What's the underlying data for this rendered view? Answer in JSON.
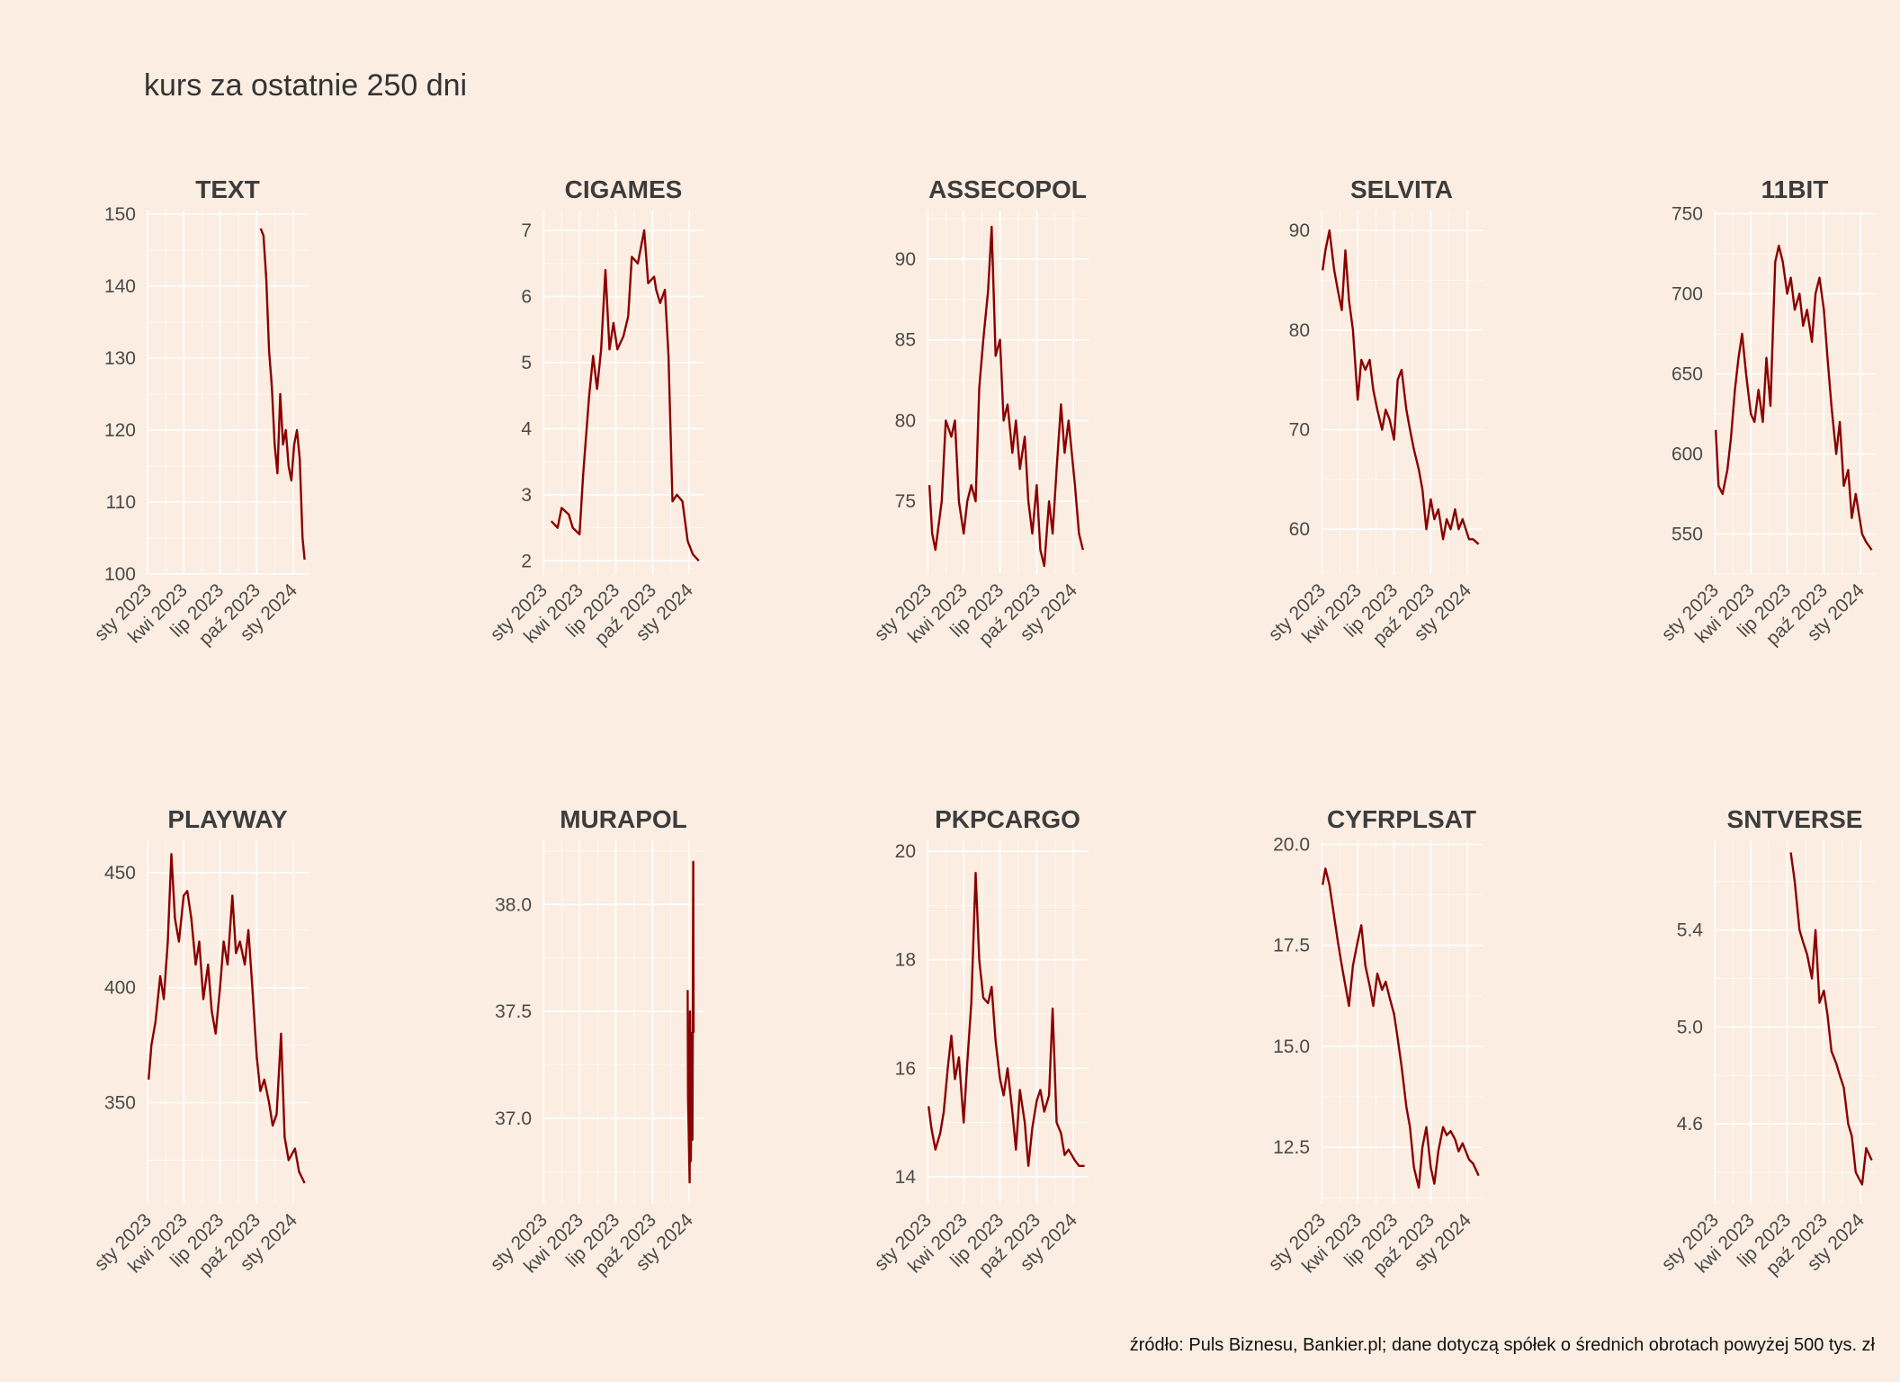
{
  "title": "kurs za ostatnie 250 dni",
  "caption": "źródło: Puls Biznesu, Bankier.pl; dane dotyczą spółek o średnich obrotach powyżej 500 tys. zł",
  "colors": {
    "background": "#FBEDE1",
    "line": "#8B0000",
    "grid": "#FFFFFF"
  },
  "chart_data": [
    {
      "type": "line",
      "title": "TEXT",
      "x_ticks": [
        "sty 2023",
        "kwi 2023",
        "lip 2023",
        "paź 2023",
        "sty 2024"
      ],
      "y_ticks": [
        "100",
        "110",
        "120",
        "130",
        "140",
        "150"
      ],
      "ylim": [
        100,
        150.5
      ],
      "xlim": [
        "2022-12-29",
        "2024-02-08"
      ],
      "series": [
        {
          "x": [
            "2023-10-11",
            "2023-10-18",
            "2023-10-25",
            "2023-11-01",
            "2023-11-08",
            "2023-11-15",
            "2023-11-22",
            "2023-11-29",
            "2023-12-06",
            "2023-12-13",
            "2023-12-20",
            "2023-12-27",
            "2024-01-03",
            "2024-01-10",
            "2024-01-17",
            "2024-01-24",
            "2024-01-29"
          ],
          "y": [
            148,
            147,
            141,
            131,
            126,
            118,
            114,
            125,
            118,
            120,
            115,
            113,
            118,
            120,
            116,
            105,
            102
          ]
        }
      ]
    },
    {
      "type": "line",
      "title": "CIGAMES",
      "x_ticks": [
        "sty 2023",
        "kwi 2023",
        "lip 2023",
        "paź 2023",
        "sty 2024"
      ],
      "y_ticks": [
        "2",
        "3",
        "4",
        "5",
        "6",
        "7"
      ],
      "ylim": [
        1.8,
        7.3
      ],
      "xlim": [
        "2022-12-29",
        "2024-02-08"
      ],
      "series": [
        {
          "x": [
            "2023-01-20",
            "2023-02-05",
            "2023-02-15",
            "2023-03-05",
            "2023-03-15",
            "2023-04-01",
            "2023-04-10",
            "2023-04-25",
            "2023-05-05",
            "2023-05-15",
            "2023-05-25",
            "2023-06-05",
            "2023-06-15",
            "2023-06-25",
            "2023-07-05",
            "2023-07-20",
            "2023-08-01",
            "2023-08-10",
            "2023-08-25",
            "2023-09-10",
            "2023-09-20",
            "2023-10-05",
            "2023-10-10",
            "2023-10-20",
            "2023-11-01",
            "2023-11-10",
            "2023-11-20",
            "2023-12-01",
            "2023-12-15",
            "2023-12-28",
            "2024-01-10",
            "2024-01-25"
          ],
          "y": [
            2.6,
            2.5,
            2.8,
            2.7,
            2.5,
            2.4,
            3.3,
            4.5,
            5.1,
            4.6,
            5.2,
            6.4,
            5.2,
            5.6,
            5.2,
            5.4,
            5.7,
            6.6,
            6.5,
            7.0,
            6.2,
            6.3,
            6.1,
            5.9,
            6.1,
            5.1,
            2.9,
            3.0,
            2.9,
            2.3,
            2.1,
            2.0
          ]
        }
      ]
    },
    {
      "type": "line",
      "title": "ASSECOPOL",
      "x_ticks": [
        "sty 2023",
        "kwi 2023",
        "lip 2023",
        "paź 2023",
        "sty 2024"
      ],
      "y_ticks": [
        "75",
        "80",
        "85",
        "90"
      ],
      "ylim": [
        70.5,
        93
      ],
      "xlim": [
        "2022-12-29",
        "2024-02-08"
      ],
      "series": [
        {
          "x": [
            "2023-01-05",
            "2023-01-12",
            "2023-01-20",
            "2023-02-05",
            "2023-02-15",
            "2023-03-01",
            "2023-03-10",
            "2023-03-20",
            "2023-04-01",
            "2023-04-10",
            "2023-04-20",
            "2023-05-01",
            "2023-05-10",
            "2023-05-20",
            "2023-06-01",
            "2023-06-10",
            "2023-06-20",
            "2023-07-01",
            "2023-07-10",
            "2023-07-20",
            "2023-08-01",
            "2023-08-10",
            "2023-08-20",
            "2023-09-01",
            "2023-09-10",
            "2023-09-20",
            "2023-10-01",
            "2023-10-10",
            "2023-10-20",
            "2023-11-01",
            "2023-11-10",
            "2023-11-20",
            "2023-12-01",
            "2023-12-10",
            "2023-12-20",
            "2024-01-05",
            "2024-01-15",
            "2024-01-25"
          ],
          "y": [
            76,
            73,
            72,
            75,
            80,
            79,
            80,
            75,
            73,
            75,
            76,
            75,
            82,
            85,
            88,
            92,
            84,
            85,
            80,
            81,
            78,
            80,
            77,
            79,
            75,
            73,
            76,
            72,
            71,
            75,
            73,
            77,
            81,
            78,
            80,
            76,
            73,
            72
          ]
        }
      ]
    },
    {
      "type": "line",
      "title": "SELVITA",
      "x_ticks": [
        "sty 2023",
        "kwi 2023",
        "lip 2023",
        "paź 2023",
        "sty 2024"
      ],
      "y_ticks": [
        "60",
        "70",
        "80",
        "90"
      ],
      "ylim": [
        55.5,
        92
      ],
      "xlim": [
        "2022-12-29",
        "2024-02-08"
      ],
      "series": [
        {
          "x": [
            "2023-01-03",
            "2023-01-10",
            "2023-01-20",
            "2023-02-01",
            "2023-02-10",
            "2023-02-20",
            "2023-03-01",
            "2023-03-10",
            "2023-03-20",
            "2023-04-01",
            "2023-04-10",
            "2023-04-20",
            "2023-05-01",
            "2023-05-10",
            "2023-05-20",
            "2023-06-01",
            "2023-06-10",
            "2023-06-20",
            "2023-07-01",
            "2023-07-10",
            "2023-07-20",
            "2023-08-01",
            "2023-08-10",
            "2023-08-20",
            "2023-09-01",
            "2023-09-10",
            "2023-09-20",
            "2023-10-01",
            "2023-10-10",
            "2023-10-20",
            "2023-11-01",
            "2023-11-10",
            "2023-11-20",
            "2023-12-01",
            "2023-12-10",
            "2023-12-20",
            "2024-01-05",
            "2024-01-15",
            "2024-01-29"
          ],
          "y": [
            86,
            88,
            90,
            86,
            84,
            82,
            88,
            83,
            80,
            73,
            77,
            76,
            77,
            74,
            72,
            70,
            72,
            71,
            69,
            75,
            76,
            72,
            70,
            68,
            66,
            64,
            60,
            63,
            61,
            62,
            59,
            61,
            60,
            62,
            60,
            61,
            59,
            59,
            58.5
          ]
        }
      ]
    },
    {
      "type": "line",
      "title": "11BIT",
      "x_ticks": [
        "sty 2023",
        "kwi 2023",
        "lip 2023",
        "paź 2023",
        "sty 2024"
      ],
      "y_ticks": [
        "550",
        "600",
        "650",
        "700",
        "750"
      ],
      "ylim": [
        525,
        752
      ],
      "xlim": [
        "2022-12-29",
        "2024-02-08"
      ],
      "series": [
        {
          "x": [
            "2023-01-03",
            "2023-01-10",
            "2023-01-20",
            "2023-02-01",
            "2023-02-10",
            "2023-02-20",
            "2023-03-01",
            "2023-03-10",
            "2023-03-20",
            "2023-04-01",
            "2023-04-10",
            "2023-04-20",
            "2023-05-01",
            "2023-05-10",
            "2023-05-20",
            "2023-06-01",
            "2023-06-10",
            "2023-06-20",
            "2023-07-01",
            "2023-07-10",
            "2023-07-20",
            "2023-08-01",
            "2023-08-10",
            "2023-08-20",
            "2023-09-01",
            "2023-09-10",
            "2023-09-20",
            "2023-10-01",
            "2023-10-10",
            "2023-10-20",
            "2023-11-01",
            "2023-11-10",
            "2023-11-20",
            "2023-12-01",
            "2023-12-10",
            "2023-12-20",
            "2024-01-05",
            "2024-01-15",
            "2024-01-29"
          ],
          "y": [
            615,
            580,
            575,
            590,
            610,
            640,
            660,
            675,
            650,
            625,
            620,
            640,
            620,
            660,
            630,
            720,
            730,
            720,
            700,
            710,
            690,
            700,
            680,
            690,
            670,
            700,
            710,
            690,
            660,
            630,
            600,
            620,
            580,
            590,
            560,
            575,
            550,
            545,
            540
          ]
        }
      ]
    },
    {
      "type": "line",
      "title": "PLAYWAY",
      "x_ticks": [
        "sty 2023",
        "kwi 2023",
        "lip 2023",
        "paź 2023",
        "sty 2024"
      ],
      "y_ticks": [
        "350",
        "400",
        "450"
      ],
      "ylim": [
        306,
        464
      ],
      "xlim": [
        "2022-12-29",
        "2024-02-08"
      ],
      "series": [
        {
          "x": [
            "2023-01-03",
            "2023-01-10",
            "2023-01-20",
            "2023-02-01",
            "2023-02-10",
            "2023-02-20",
            "2023-03-01",
            "2023-03-10",
            "2023-03-20",
            "2023-04-01",
            "2023-04-10",
            "2023-04-20",
            "2023-05-01",
            "2023-05-10",
            "2023-05-20",
            "2023-06-01",
            "2023-06-10",
            "2023-06-20",
            "2023-07-01",
            "2023-07-10",
            "2023-07-20",
            "2023-08-01",
            "2023-08-10",
            "2023-08-20",
            "2023-09-01",
            "2023-09-10",
            "2023-09-20",
            "2023-10-01",
            "2023-10-10",
            "2023-10-20",
            "2023-11-01",
            "2023-11-10",
            "2023-11-20",
            "2023-12-01",
            "2023-12-10",
            "2023-12-20",
            "2024-01-05",
            "2024-01-15",
            "2024-01-29"
          ],
          "y": [
            360,
            375,
            385,
            405,
            395,
            420,
            458,
            430,
            420,
            440,
            442,
            430,
            410,
            420,
            395,
            410,
            390,
            380,
            400,
            420,
            410,
            440,
            415,
            420,
            410,
            425,
            400,
            370,
            355,
            360,
            350,
            340,
            345,
            380,
            335,
            325,
            330,
            320,
            315
          ]
        }
      ]
    },
    {
      "type": "line",
      "title": "MURAPOL",
      "x_ticks": [
        "sty 2023",
        "kwi 2023",
        "lip 2023",
        "paź 2023",
        "sty 2024"
      ],
      "y_ticks": [
        "37.0",
        "37.5",
        "38.0"
      ],
      "ylim": [
        36.6,
        38.3
      ],
      "xlim": [
        "2022-12-29",
        "2024-02-08"
      ],
      "series": [
        {
          "x": [
            "2023-12-28",
            "2023-12-29",
            "2024-01-02",
            "2024-01-03",
            "2024-01-04",
            "2024-01-05",
            "2024-01-08",
            "2024-01-09",
            "2024-01-10",
            "2024-01-11",
            "2024-01-12"
          ],
          "y": [
            37.6,
            37.1,
            36.7,
            37.5,
            37.0,
            36.8,
            37.4,
            36.9,
            37.5,
            38.2,
            37.4
          ]
        }
      ]
    },
    {
      "type": "line",
      "title": "PKPCARGO",
      "x_ticks": [
        "sty 2023",
        "kwi 2023",
        "lip 2023",
        "paź 2023",
        "sty 2024"
      ],
      "y_ticks": [
        "14",
        "16",
        "18",
        "20"
      ],
      "ylim": [
        13.5,
        20.2
      ],
      "xlim": [
        "2022-12-29",
        "2024-02-08"
      ],
      "series": [
        {
          "x": [
            "2023-01-03",
            "2023-01-10",
            "2023-01-20",
            "2023-02-01",
            "2023-02-10",
            "2023-02-20",
            "2023-03-01",
            "2023-03-10",
            "2023-03-20",
            "2023-04-01",
            "2023-04-10",
            "2023-04-20",
            "2023-05-01",
            "2023-05-10",
            "2023-05-20",
            "2023-06-01",
            "2023-06-10",
            "2023-06-20",
            "2023-07-01",
            "2023-07-10",
            "2023-07-20",
            "2023-08-01",
            "2023-08-10",
            "2023-08-20",
            "2023-09-01",
            "2023-09-10",
            "2023-09-20",
            "2023-10-01",
            "2023-10-10",
            "2023-10-20",
            "2023-11-01",
            "2023-11-10",
            "2023-11-20",
            "2023-12-01",
            "2023-12-10",
            "2023-12-20",
            "2024-01-05",
            "2024-01-15",
            "2024-01-29"
          ],
          "y": [
            15.3,
            14.9,
            14.5,
            14.8,
            15.2,
            16.0,
            16.6,
            15.8,
            16.2,
            15.0,
            16.1,
            17.2,
            19.6,
            18.0,
            17.3,
            17.2,
            17.5,
            16.5,
            15.8,
            15.5,
            16.0,
            15.2,
            14.5,
            15.6,
            15.0,
            14.2,
            14.9,
            15.4,
            15.6,
            15.2,
            15.5,
            17.1,
            15.0,
            14.8,
            14.4,
            14.5,
            14.3,
            14.2,
            14.2
          ]
        }
      ]
    },
    {
      "type": "line",
      "title": "CYFRPLSAT",
      "x_ticks": [
        "sty 2023",
        "kwi 2023",
        "lip 2023",
        "paź 2023",
        "sty 2024"
      ],
      "y_ticks": [
        "12.5",
        "15.0",
        "17.5",
        "20.0"
      ],
      "ylim": [
        11.1,
        20.1
      ],
      "xlim": [
        "2022-12-29",
        "2024-02-08"
      ],
      "series": [
        {
          "x": [
            "2023-01-03",
            "2023-01-10",
            "2023-01-20",
            "2023-02-01",
            "2023-02-10",
            "2023-02-20",
            "2023-03-01",
            "2023-03-10",
            "2023-03-20",
            "2023-04-01",
            "2023-04-10",
            "2023-04-20",
            "2023-05-01",
            "2023-05-10",
            "2023-05-20",
            "2023-06-01",
            "2023-06-10",
            "2023-06-20",
            "2023-07-01",
            "2023-07-10",
            "2023-07-20",
            "2023-08-01",
            "2023-08-10",
            "2023-08-20",
            "2023-09-01",
            "2023-09-10",
            "2023-09-20",
            "2023-10-01",
            "2023-10-10",
            "2023-10-20",
            "2023-11-01",
            "2023-11-10",
            "2023-11-20",
            "2023-12-01",
            "2023-12-10",
            "2023-12-20",
            "2024-01-05",
            "2024-01-15",
            "2024-01-29"
          ],
          "y": [
            19.0,
            19.4,
            19.0,
            18.2,
            17.6,
            17.0,
            16.5,
            16.0,
            17.0,
            17.6,
            18.0,
            17.0,
            16.5,
            16.0,
            16.8,
            16.4,
            16.6,
            16.2,
            15.8,
            15.2,
            14.5,
            13.5,
            13.0,
            12.0,
            11.5,
            12.5,
            13.0,
            12.0,
            11.6,
            12.4,
            13.0,
            12.8,
            12.9,
            12.7,
            12.4,
            12.6,
            12.2,
            12.1,
            11.8
          ]
        }
      ]
    },
    {
      "type": "line",
      "title": "SNTVERSE",
      "x_ticks": [
        "sty 2023",
        "kwi 2023",
        "lip 2023",
        "paź 2023",
        "sty 2024"
      ],
      "y_ticks": [
        "4.6",
        "5.0",
        "5.4"
      ],
      "ylim": [
        4.27,
        5.77
      ],
      "xlim": [
        "2022-12-29",
        "2024-02-08"
      ],
      "series": [
        {
          "x": [
            "2023-07-10",
            "2023-07-20",
            "2023-08-01",
            "2023-08-10",
            "2023-08-20",
            "2023-09-01",
            "2023-09-10",
            "2023-09-20",
            "2023-10-01",
            "2023-10-10",
            "2023-10-20",
            "2023-11-01",
            "2023-11-10",
            "2023-11-20",
            "2023-12-01",
            "2023-12-10",
            "2023-12-20",
            "2024-01-05",
            "2024-01-15",
            "2024-01-29"
          ],
          "y": [
            5.72,
            5.6,
            5.4,
            5.35,
            5.3,
            5.2,
            5.4,
            5.1,
            5.15,
            5.05,
            4.9,
            4.85,
            4.8,
            4.75,
            4.6,
            4.55,
            4.4,
            4.35,
            4.5,
            4.45
          ]
        }
      ]
    }
  ]
}
